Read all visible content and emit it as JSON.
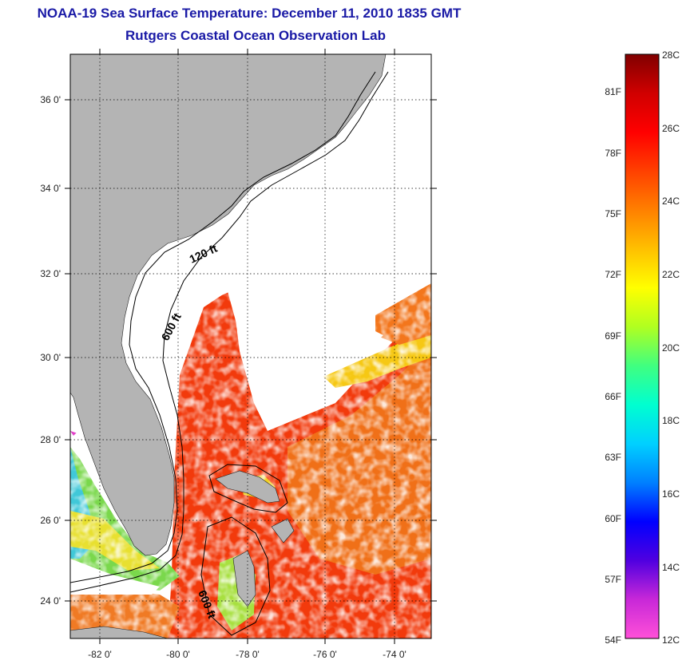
{
  "title": {
    "line1": "NOAA-19 Sea Surface Temperature:  December 11, 2010 1835 GMT",
    "line2": "Rutgers Coastal Ocean Observation Lab"
  },
  "map": {
    "lat_labels": [
      "36 0'",
      "34 0'",
      "32 0'",
      "30 0'",
      "28 0'",
      "26 0'",
      "24 0'"
    ],
    "lon_labels": [
      "-82 0'",
      "-80 0'",
      "-78 0'",
      "-76 0'",
      "-74 0'"
    ],
    "isobath_labels": [
      "120 ft",
      "600 ft",
      "600 ft"
    ],
    "land_color": "#b4b4b4",
    "cloud_color": "#ffffff"
  },
  "colorbar": {
    "celsius": [
      "28C",
      "26C",
      "24C",
      "22C",
      "20C",
      "18C",
      "16C",
      "14C",
      "12C"
    ],
    "fahrenheit": [
      "81F",
      "78F",
      "75F",
      "72F",
      "69F",
      "66F",
      "63F",
      "60F",
      "57F",
      "54F"
    ],
    "gradient": [
      "#ff50d8",
      "#c828d8",
      "#5000e0",
      "#0000ff",
      "#0080ff",
      "#00d0ff",
      "#00ffd0",
      "#40ff80",
      "#b0ff20",
      "#ffff00",
      "#ffc000",
      "#ff8000",
      "#ff4000",
      "#ff0000",
      "#d00000",
      "#800000"
    ]
  }
}
